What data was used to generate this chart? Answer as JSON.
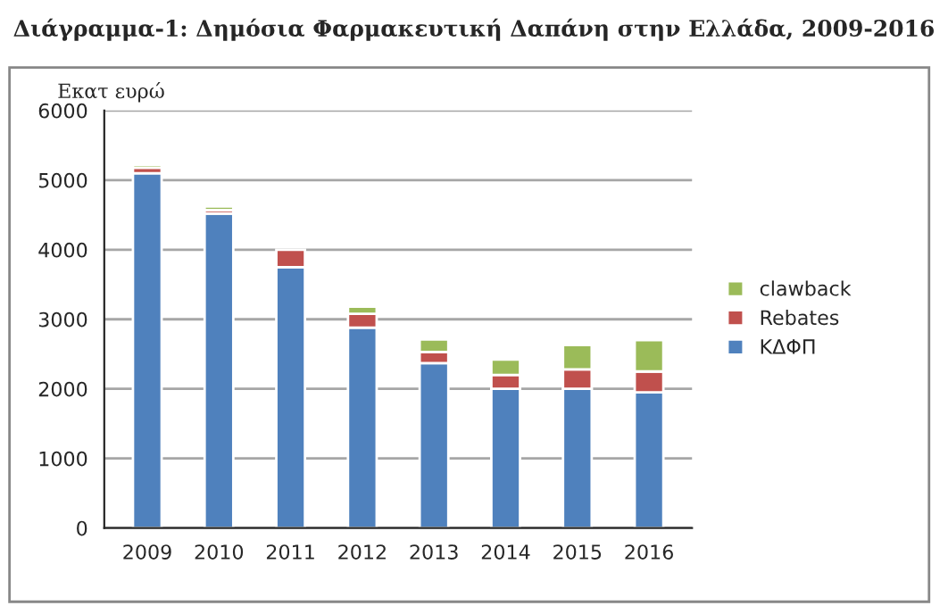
{
  "chart_data": {
    "type": "bar",
    "title": "Διάγραμμα-1: Δημόσια Φαρμακευτική Δαπάνη στην Ελλάδα, 2009-2016",
    "ylabel": "Εκατ ευρώ",
    "categories": [
      "2009",
      "2010",
      "2011",
      "2012",
      "2013",
      "2014",
      "2015",
      "2016"
    ],
    "stacked": true,
    "series": [
      {
        "name": "ΚΔΦΠ",
        "color": "#4f81bd",
        "values": [
          5100,
          4520,
          3750,
          2880,
          2370,
          2000,
          2000,
          1950
        ]
      },
      {
        "name": "Rebates",
        "color": "#c0504d",
        "values": [
          80,
          50,
          250,
          200,
          160,
          200,
          280,
          300
        ]
      },
      {
        "name": "clawback",
        "color": "#9bbb59",
        "values": [
          40,
          50,
          null,
          100,
          180,
          220,
          350,
          450
        ]
      }
    ],
    "ylim": [
      0,
      6000
    ],
    "yticks": [
      0,
      1000,
      2000,
      3000,
      4000,
      5000,
      6000
    ],
    "grid": "y",
    "legend": "right"
  }
}
